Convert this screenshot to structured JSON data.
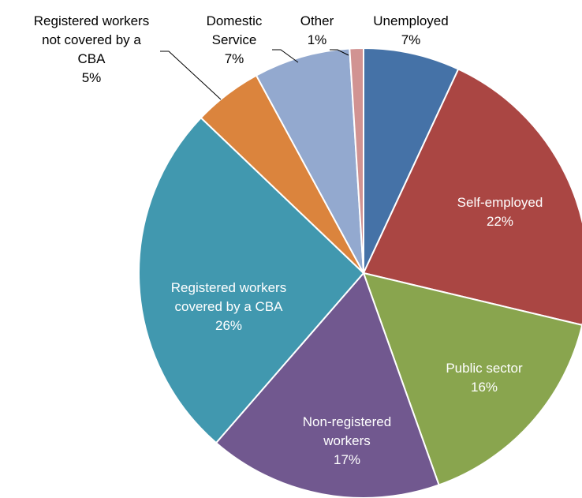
{
  "chart_data": {
    "type": "pie",
    "title": "",
    "legend": "none",
    "slices": [
      {
        "key": "unemployed",
        "label_lines": [
          "Unemployed"
        ],
        "percent_label": "7%",
        "value": 7,
        "color": "#4572A7"
      },
      {
        "key": "self-employed",
        "label_lines": [
          "Self-employed"
        ],
        "percent_label": "22%",
        "value": 22,
        "color": "#AA4643"
      },
      {
        "key": "public-sector",
        "label_lines": [
          "Public sector"
        ],
        "percent_label": "16%",
        "value": 16,
        "color": "#89A54E"
      },
      {
        "key": "non-registered-workers",
        "label_lines": [
          "Non-registered",
          "workers"
        ],
        "percent_label": "17%",
        "value": 17,
        "color": "#71588F"
      },
      {
        "key": "registered-workers-cba",
        "label_lines": [
          "Registered workers",
          "covered by a CBA"
        ],
        "percent_label": "26%",
        "value": 26,
        "color": "#4198AF"
      },
      {
        "key": "registered-workers-not-cba",
        "label_lines": [
          "Registered workers",
          "not covered by a",
          "CBA"
        ],
        "percent_label": "5%",
        "value": 5,
        "color": "#DB843D"
      },
      {
        "key": "domestic-service",
        "label_lines": [
          "Domestic",
          "Service"
        ],
        "percent_label": "7%",
        "value": 7,
        "color": "#93A9CF"
      },
      {
        "key": "other",
        "label_lines": [
          "Other"
        ],
        "percent_label": "1%",
        "value": 1,
        "color": "#D19392"
      }
    ]
  }
}
